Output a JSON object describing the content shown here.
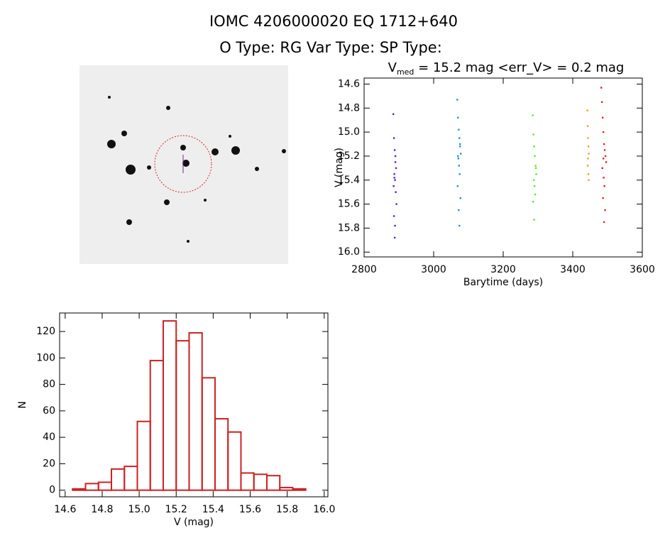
{
  "header": {
    "title": "IOMC 4206000020    EQ 1712+640",
    "subtitle": "O Type: RG   Var Type:    SP Type:"
  },
  "chart_data": [
    {
      "type": "scatter",
      "title": {
        "main": "V",
        "sub": "med",
        "rest": " = 15.2 mag <err_V> = 0.2 mag"
      },
      "x_label": "Barytime (days)",
      "y_label": "V (mag)",
      "xlim": [
        2800,
        3600
      ],
      "xticks": [
        2800,
        3000,
        3200,
        3400,
        3600
      ],
      "ylim": [
        14.55,
        16.04
      ],
      "y_inverted": true,
      "yticks": [
        14.6,
        14.8,
        {
          "value": 15,
          "label": "15.0"
        },
        15.2,
        15.4,
        15.6,
        15.8,
        {
          "value": 16,
          "label": "16.0"
        }
      ],
      "series": [
        {
          "color": "#5a1fc8",
          "x": [
            2884,
            2886,
            2888,
            2890,
            2892,
            2887,
            2889,
            2885,
            2891,
            2893,
            2886,
            2888,
            2890,
            2887,
            2889
          ],
          "values": [
            14.85,
            15.05,
            15.15,
            15.25,
            15.3,
            15.35,
            15.4,
            15.45,
            15.5,
            15.6,
            15.7,
            15.88,
            15.2,
            15.38,
            15.78
          ]
        },
        {
          "color": "#1e90e0",
          "x": [
            3068,
            3070,
            3072,
            3074,
            3076,
            3078,
            3071,
            3073,
            3075,
            3069,
            3077,
            3072,
            3074,
            3070,
            3076
          ],
          "values": [
            14.73,
            14.88,
            14.98,
            15.05,
            15.12,
            15.18,
            15.22,
            15.28,
            15.35,
            15.45,
            15.55,
            15.65,
            15.78,
            15.2,
            15.1
          ]
        },
        {
          "color": "#66e02a",
          "x": [
            3285,
            3287,
            3289,
            3291,
            3293,
            3295,
            3288,
            3290,
            3292,
            3286,
            3294,
            3289
          ],
          "values": [
            14.86,
            15.02,
            15.12,
            15.2,
            15.28,
            15.35,
            15.4,
            15.45,
            15.52,
            15.58,
            15.3,
            15.73
          ]
        },
        {
          "color": "#e8a020",
          "x": [
            3442,
            3443,
            3444,
            3445,
            3446,
            3444,
            3443,
            3445,
            3446
          ],
          "values": [
            14.82,
            14.95,
            15.05,
            15.12,
            15.18,
            15.22,
            15.28,
            15.35,
            15.4
          ]
        },
        {
          "color": "#e02020",
          "x": [
            3482,
            3484,
            3486,
            3488,
            3490,
            3492,
            3494,
            3496,
            3485,
            3489,
            3491,
            3487,
            3493,
            3490,
            3488
          ],
          "values": [
            14.63,
            14.75,
            14.88,
            15.0,
            15.1,
            15.15,
            15.2,
            15.25,
            15.3,
            15.38,
            15.45,
            15.55,
            15.65,
            15.75,
            15.22
          ]
        }
      ]
    },
    {
      "type": "histogram",
      "color": "#cc2222",
      "x_label": "V (mag)",
      "y_label": "N",
      "xlim": [
        14.57,
        16.02
      ],
      "xticks": [
        14.6,
        14.8,
        {
          "value": 15,
          "label": "15.0"
        },
        15.2,
        15.4,
        15.6,
        15.8,
        {
          "value": 16,
          "label": "16.0"
        }
      ],
      "ylim": [
        -5,
        134
      ],
      "yticks": [
        0,
        20,
        40,
        60,
        80,
        100,
        120
      ],
      "bins": [
        14.64,
        14.71,
        14.78,
        14.85,
        14.92,
        14.99,
        15.06,
        15.13,
        15.2,
        15.27,
        15.34,
        15.41,
        15.48,
        15.55,
        15.62,
        15.69,
        15.76,
        15.83,
        15.9
      ],
      "values": [
        1,
        5,
        6,
        16,
        18,
        52,
        98,
        128,
        113,
        119,
        85,
        54,
        44,
        13,
        12,
        11,
        2,
        1
      ]
    }
  ]
}
